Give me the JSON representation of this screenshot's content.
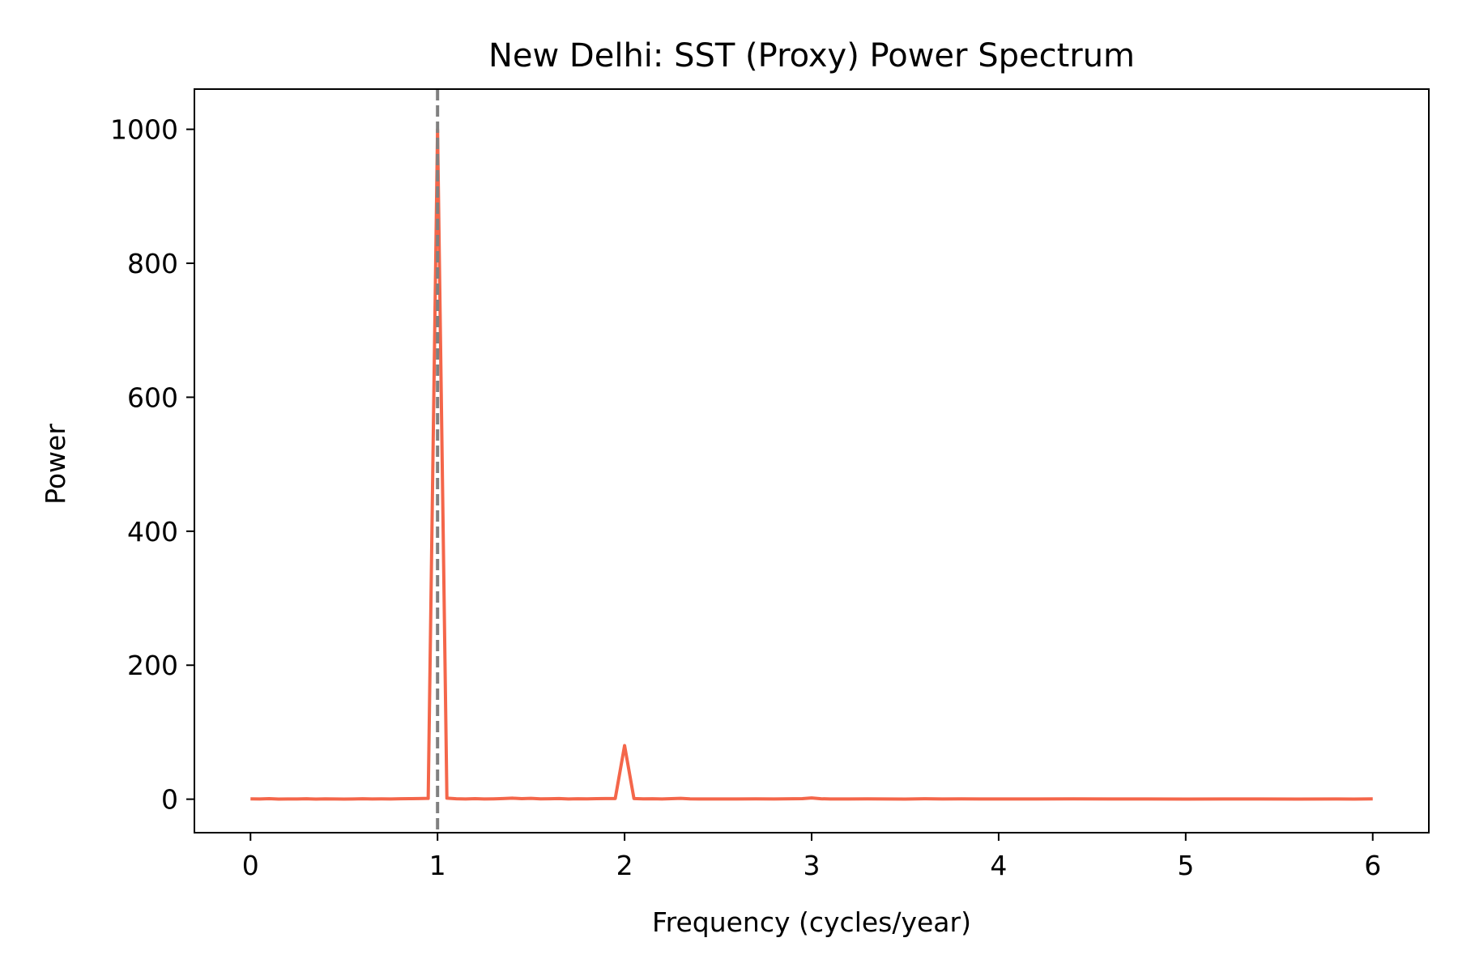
{
  "chart_data": {
    "type": "line",
    "title": "New Delhi: SST (Proxy) Power Spectrum",
    "xlabel": "Frequency (cycles/year)",
    "ylabel": "Power",
    "xlim": [
      -0.3,
      6.3
    ],
    "ylim": [
      -50,
      1060
    ],
    "xticks": [
      0,
      1,
      2,
      3,
      4,
      5,
      6
    ],
    "yticks": [
      0,
      200,
      400,
      600,
      800,
      1000
    ],
    "grid": false,
    "legend": "none",
    "series": [
      {
        "color": "#f4664a",
        "x": [
          0,
          0.05,
          0.1,
          0.15,
          0.2,
          0.25,
          0.3,
          0.35,
          0.4,
          0.45,
          0.5,
          0.55,
          0.6,
          0.65,
          0.7,
          0.75,
          0.8,
          0.85,
          0.9,
          0.95,
          1.0,
          1.05,
          1.1,
          1.15,
          1.2,
          1.25,
          1.3,
          1.35,
          1.4,
          1.45,
          1.5,
          1.55,
          1.6,
          1.65,
          1.7,
          1.75,
          1.8,
          1.85,
          1.9,
          1.95,
          2.0,
          2.05,
          2.1,
          2.15,
          2.2,
          2.25,
          2.3,
          2.35,
          2.4,
          2.5,
          2.6,
          2.7,
          2.8,
          2.9,
          2.95,
          3.0,
          3.05,
          3.1,
          3.2,
          3.3,
          3.4,
          3.5,
          3.6,
          3.7,
          3.8,
          3.9,
          4.0,
          4.2,
          4.4,
          4.6,
          4.8,
          5.0,
          5.2,
          5.4,
          5.6,
          5.8,
          5.9,
          6.0
        ],
        "y": [
          0.5,
          0.3,
          0.8,
          0.2,
          0.4,
          0.3,
          0.6,
          0.2,
          0.5,
          0.3,
          0.2,
          0.4,
          0.7,
          0.3,
          0.5,
          0.4,
          0.6,
          0.8,
          1.0,
          1.2,
          1000,
          1.5,
          0.6,
          0.4,
          0.8,
          0.3,
          0.5,
          0.9,
          1.5,
          0.8,
          1.2,
          0.5,
          0.7,
          1.0,
          0.4,
          0.6,
          0.5,
          0.8,
          0.9,
          1.0,
          80,
          1.0,
          0.5,
          0.6,
          0.4,
          0.8,
          1.2,
          0.5,
          0.3,
          0.4,
          0.3,
          0.5,
          0.4,
          0.6,
          0.8,
          1.8,
          0.6,
          0.4,
          0.3,
          0.5,
          0.3,
          0.2,
          0.6,
          0.3,
          0.5,
          0.3,
          0.4,
          0.3,
          0.5,
          0.4,
          0.3,
          0.2,
          0.3,
          0.4,
          0.2,
          0.3,
          0.2,
          0.5
        ]
      }
    ],
    "annotations": [
      {
        "type": "vline",
        "x": 1,
        "color": "#808080",
        "style": "dashed"
      }
    ]
  }
}
